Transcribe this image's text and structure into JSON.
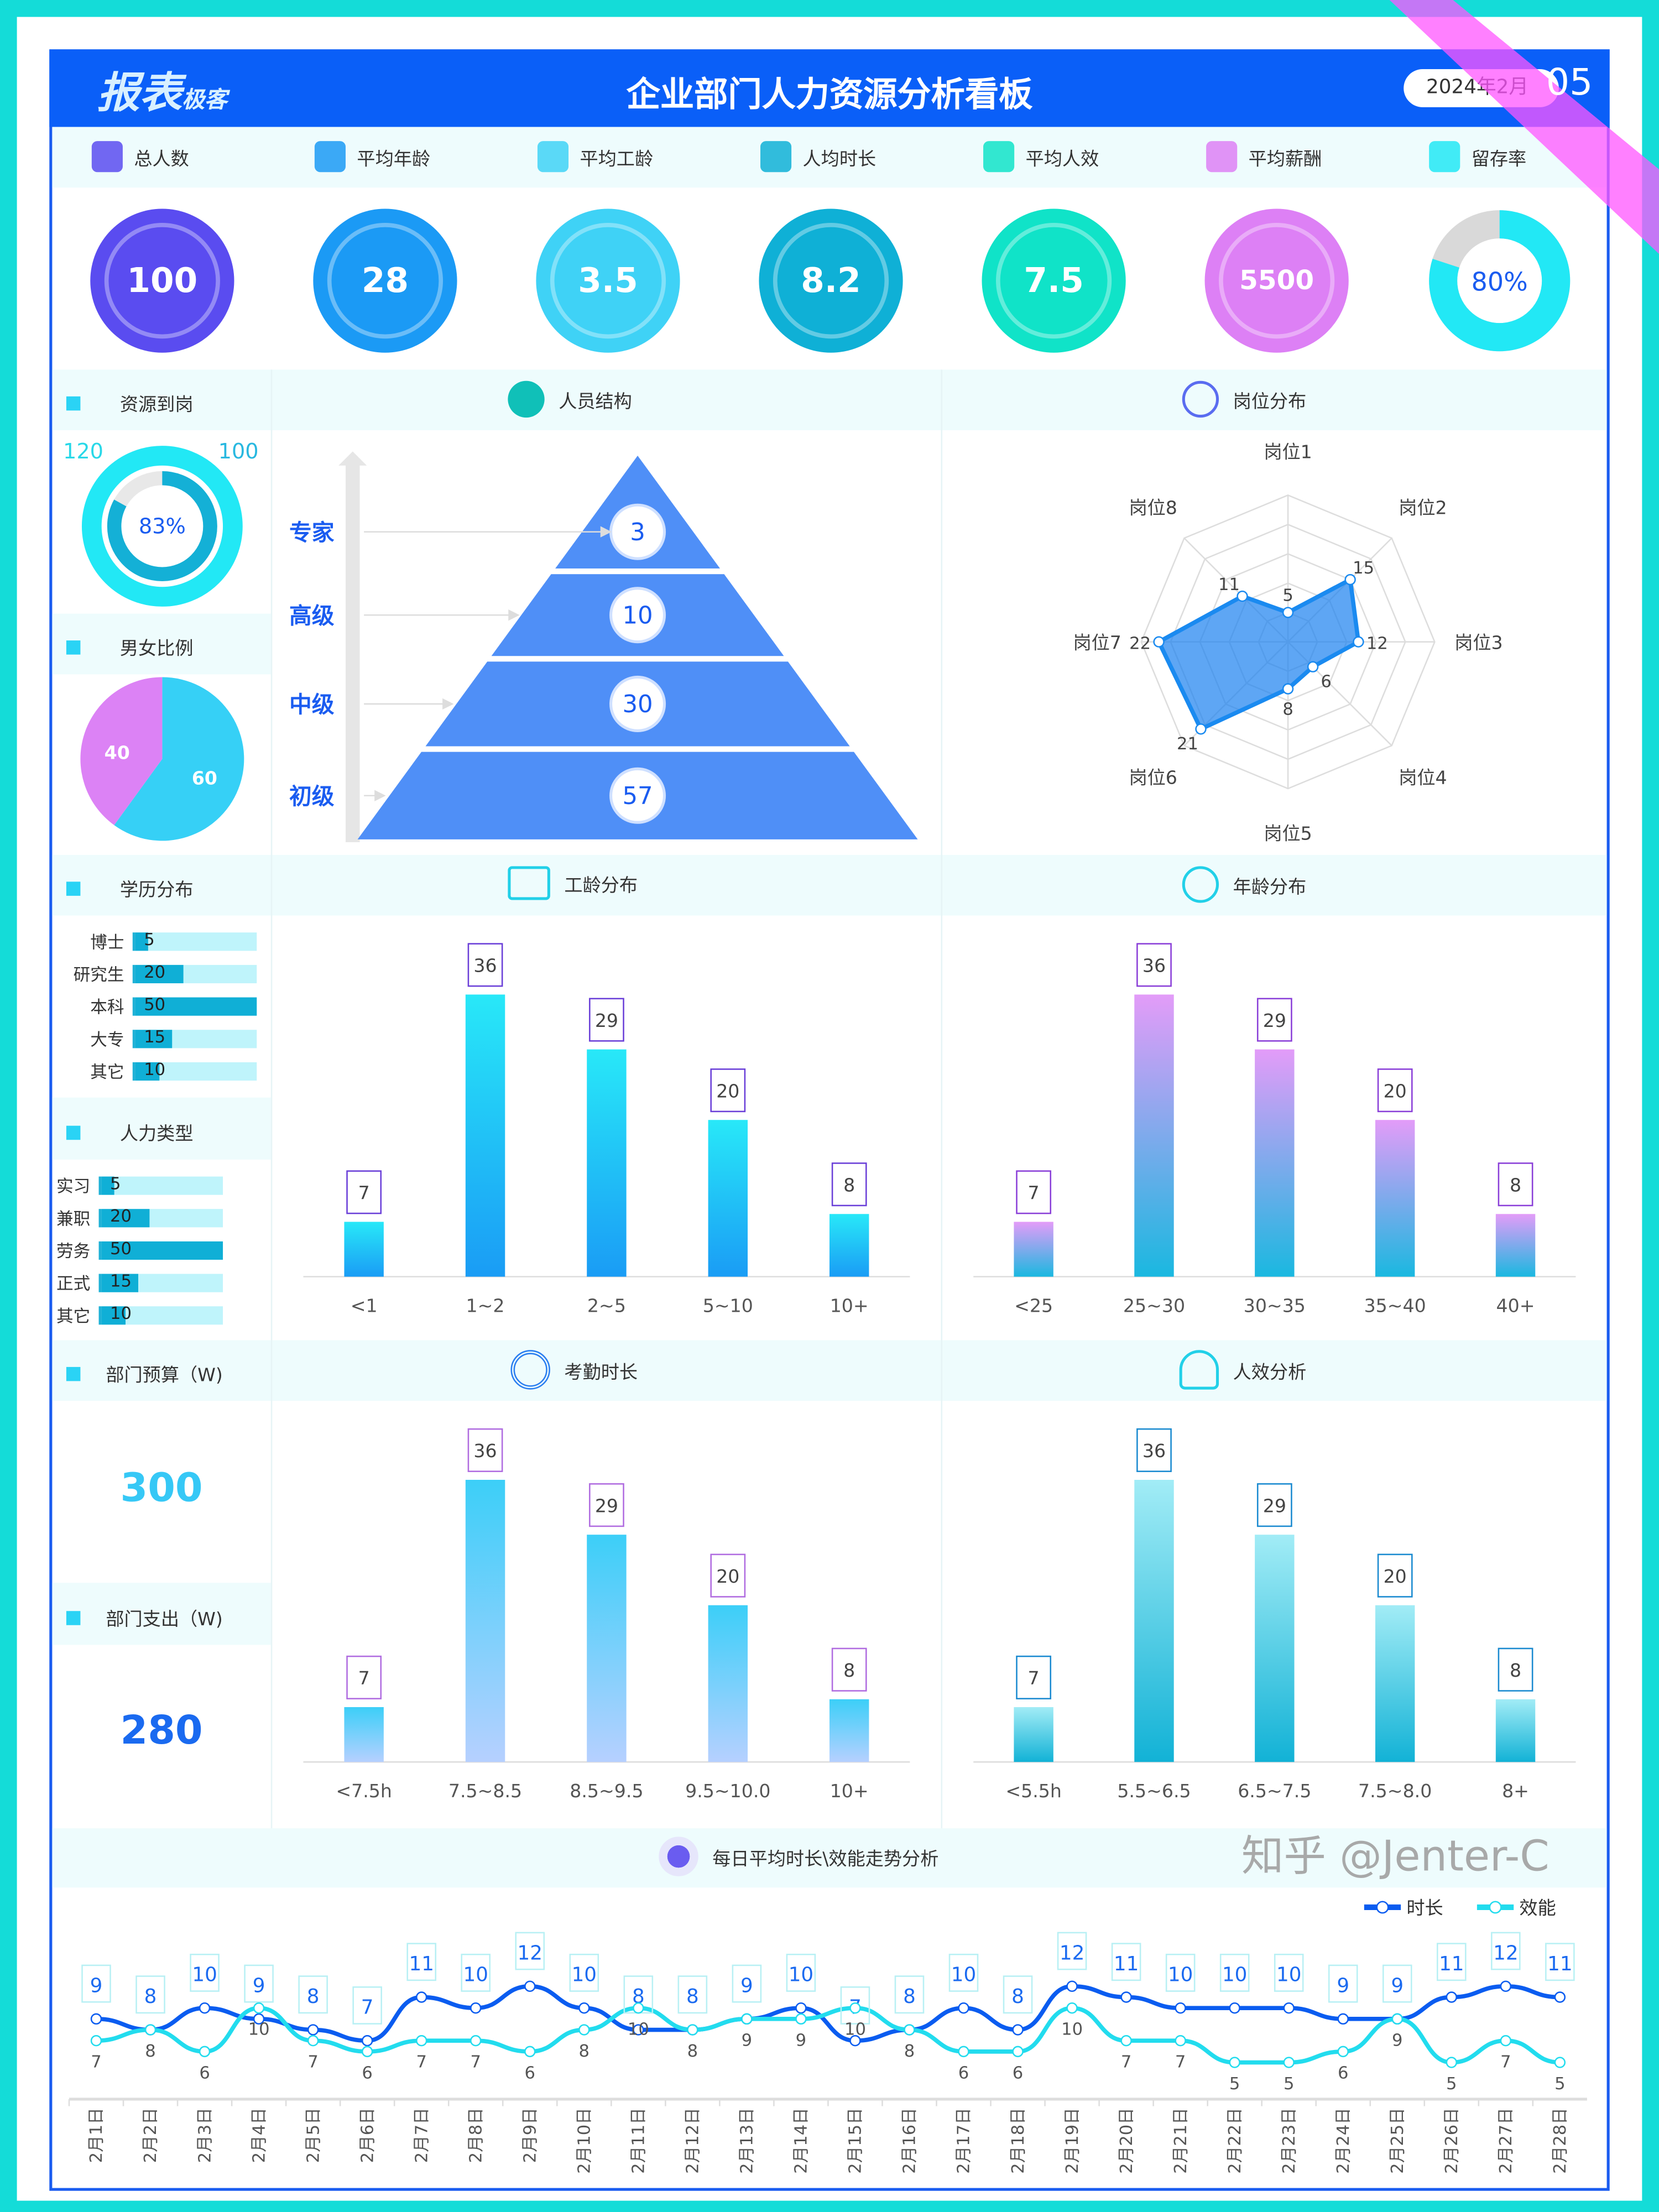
{
  "header": {
    "title": "企业部门人力资源分析看板",
    "logo": "报表极客",
    "date": "2024年2月"
  },
  "overlay": {
    "stamp": "05",
    "watermark": "知乎 @Jenter-C"
  },
  "kpis": [
    {
      "label": "总人数",
      "value": "100",
      "icon": "users-icon",
      "color": "#5a4cf0"
    },
    {
      "label": "平均年龄",
      "value": "28",
      "icon": "bar-chart-icon",
      "color": "#1b9af5"
    },
    {
      "label": "平均工龄",
      "value": "3.5",
      "icon": "user-badge-icon",
      "color": "#3fd2f6"
    },
    {
      "label": "人均时长",
      "value": "8.2",
      "icon": "fingerprint-icon",
      "color": "#0fb0d6"
    },
    {
      "label": "平均人效",
      "value": "7.5",
      "icon": "grid-icon",
      "color": "#10e3c8"
    },
    {
      "label": "平均薪酬",
      "value": "5500",
      "icon": "salary-icon",
      "color": "#dd80f5"
    },
    {
      "label": "留存率",
      "value": "80%",
      "icon": "growth-icon",
      "color": "#22e8f5",
      "percent": 80
    }
  ],
  "resource": {
    "title": "资源到岗",
    "outer": "120",
    "inner": "100",
    "percent_label": "83%",
    "percent": 83
  },
  "gender": {
    "title": "男女比例",
    "female": 40,
    "male": 60,
    "female_color": "#dc82f5",
    "male_color": "#36d0f6"
  },
  "structure": {
    "title": "人员结构",
    "levels": [
      {
        "label": "专家",
        "value": "3"
      },
      {
        "label": "高级",
        "value": "10"
      },
      {
        "label": "中级",
        "value": "30"
      },
      {
        "label": "初级",
        "value": "57"
      }
    ]
  },
  "positions": {
    "title": "岗位分布",
    "axes": [
      "岗位1",
      "岗位2",
      "岗位3",
      "岗位4",
      "岗位5",
      "岗位6",
      "岗位7",
      "岗位8"
    ],
    "values": [
      5,
      15,
      12,
      6,
      8,
      21,
      22,
      11
    ]
  },
  "education": {
    "title": "学历分布",
    "items": [
      {
        "label": "博士",
        "value": 5
      },
      {
        "label": "研究生",
        "value": 20
      },
      {
        "label": "本科",
        "value": 50
      },
      {
        "label": "大专",
        "value": 15
      },
      {
        "label": "其它",
        "value": 10
      }
    ]
  },
  "worktype": {
    "title": "人力类型",
    "items": [
      {
        "label": "实习",
        "value": 5
      },
      {
        "label": "兼职",
        "value": 20
      },
      {
        "label": "劳务",
        "value": 50
      },
      {
        "label": "正式",
        "value": 15
      },
      {
        "label": "其它",
        "value": 10
      }
    ]
  },
  "budget": {
    "title": "部门预算（W)",
    "value": "300"
  },
  "expense": {
    "title": "部门支出（W)",
    "value": "280"
  },
  "chart_data": [
    {
      "id": "tenure",
      "type": "bar",
      "title": "工龄分布",
      "categories": [
        "<1",
        "1~2",
        "2~5",
        "5~10",
        "10+"
      ],
      "values": [
        7,
        36,
        29,
        20,
        8
      ],
      "colors": [
        "#28e8f8",
        "#1a9cf5"
      ],
      "label_color": "#6a3fd8"
    },
    {
      "id": "age",
      "type": "bar",
      "title": "年龄分布",
      "categories": [
        "<25",
        "25~30",
        "30~35",
        "35~40",
        "40+"
      ],
      "values": [
        7,
        36,
        29,
        20,
        8
      ],
      "colors": [
        "#e39cf8",
        "#1ab8e0"
      ],
      "label_color": "#8a3fd8"
    },
    {
      "id": "attendance",
      "type": "bar",
      "title": "考勤时长",
      "categories": [
        "<7.5h",
        "7.5~8.5",
        "8.5~9.5",
        "9.5~10.0",
        "10+"
      ],
      "values": [
        7,
        36,
        29,
        20,
        8
      ],
      "colors": [
        "#3ccff8",
        "#b6d0ff"
      ],
      "label_color": "#b06ce0"
    },
    {
      "id": "efficiency",
      "type": "bar",
      "title": "人效分析",
      "categories": [
        "<5.5h",
        "5.5~6.5",
        "6.5~7.5",
        "7.5~8.0",
        "8+"
      ],
      "values": [
        7,
        36,
        29,
        20,
        8
      ],
      "colors": [
        "#a2ecf6",
        "#12b2d6"
      ],
      "label_color": "#1a8ad0"
    },
    {
      "id": "trend",
      "type": "line",
      "title": "每日平均时长\\效能走势分析",
      "categories": [
        "2月1日",
        "2月2日",
        "2月3日",
        "2月4日",
        "2月5日",
        "2月6日",
        "2月7日",
        "2月8日",
        "2月9日",
        "2月10日",
        "2月11日",
        "2月12日",
        "2月13日",
        "2月14日",
        "2月15日",
        "2月16日",
        "2月17日",
        "2月18日",
        "2月19日",
        "2月20日",
        "2月21日",
        "2月22日",
        "2月23日",
        "2月24日",
        "2月25日",
        "2月26日",
        "2月27日",
        "2月28日"
      ],
      "series": [
        {
          "name": "时长",
          "color": "#0a5cf0",
          "values": [
            9,
            8,
            10,
            9,
            8,
            7,
            11,
            10,
            12,
            10,
            8,
            8,
            9,
            10,
            7,
            8,
            10,
            8,
            12,
            11,
            10,
            10,
            10,
            9,
            9,
            11,
            12,
            11
          ]
        },
        {
          "name": "效能",
          "color": "#22dcee",
          "values": [
            7,
            8,
            6,
            10,
            7,
            6,
            7,
            7,
            6,
            8,
            10,
            8,
            9,
            9,
            10,
            8,
            6,
            6,
            10,
            7,
            7,
            5,
            5,
            6,
            9,
            5,
            7,
            5
          ]
        }
      ],
      "legend": "top-right"
    }
  ]
}
